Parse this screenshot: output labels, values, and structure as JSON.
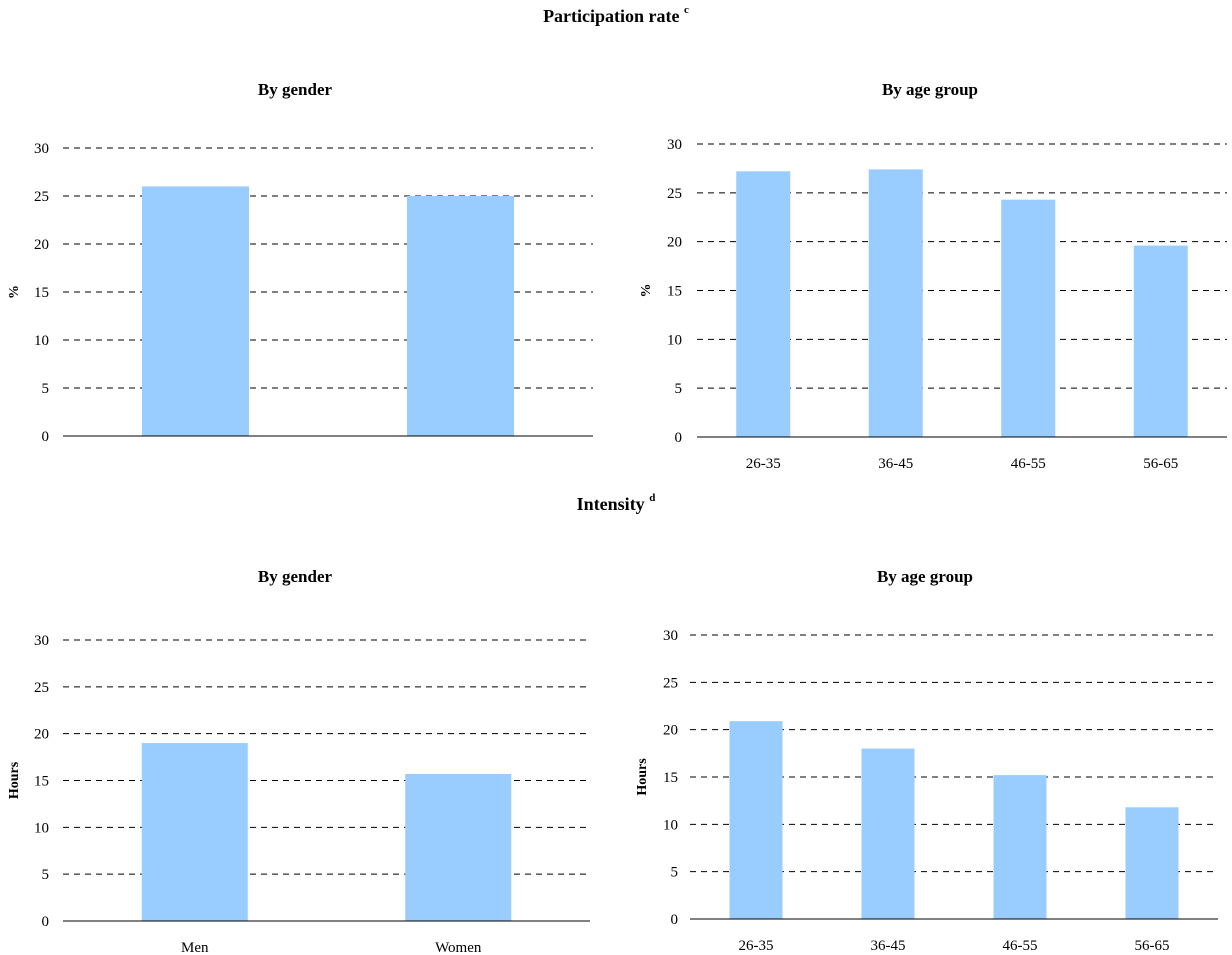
{
  "sections": [
    {
      "title": "Participation rate",
      "sup": "c"
    },
    {
      "title": "Intensity",
      "sup": "d"
    }
  ],
  "colors": {
    "bar": "#99ccff",
    "grid": "#000000",
    "axis": "#000000"
  },
  "chart_data": [
    {
      "type": "bar",
      "title": "By gender",
      "ylabel": "%",
      "categories": [
        "",
        ""
      ],
      "values": [
        26.0,
        25.0
      ],
      "ylim": [
        0,
        30
      ],
      "yticks": [
        0,
        5,
        10,
        15,
        20,
        25,
        30
      ],
      "grid": true
    },
    {
      "type": "bar",
      "title": "By age group",
      "ylabel": "%",
      "categories": [
        "26-35",
        "36-45",
        "46-55",
        "56-65"
      ],
      "values": [
        27.2,
        27.4,
        24.3,
        19.6
      ],
      "ylim": [
        0,
        30
      ],
      "yticks": [
        0,
        5,
        10,
        15,
        20,
        25,
        30
      ],
      "grid": true
    },
    {
      "type": "bar",
      "title": "By gender",
      "ylabel": "Hours",
      "categories": [
        "Men",
        "Women"
      ],
      "values": [
        19.0,
        15.7
      ],
      "ylim": [
        0,
        30
      ],
      "yticks": [
        0,
        5,
        10,
        15,
        20,
        25,
        30
      ],
      "grid": true
    },
    {
      "type": "bar",
      "title": "By age group",
      "ylabel": "Hours",
      "categories": [
        "26-35",
        "36-45",
        "46-55",
        "56-65"
      ],
      "values": [
        20.9,
        18.0,
        15.2,
        11.8
      ],
      "ylim": [
        0,
        30
      ],
      "yticks": [
        0,
        5,
        10,
        15,
        20,
        25,
        30
      ],
      "grid": true
    }
  ]
}
